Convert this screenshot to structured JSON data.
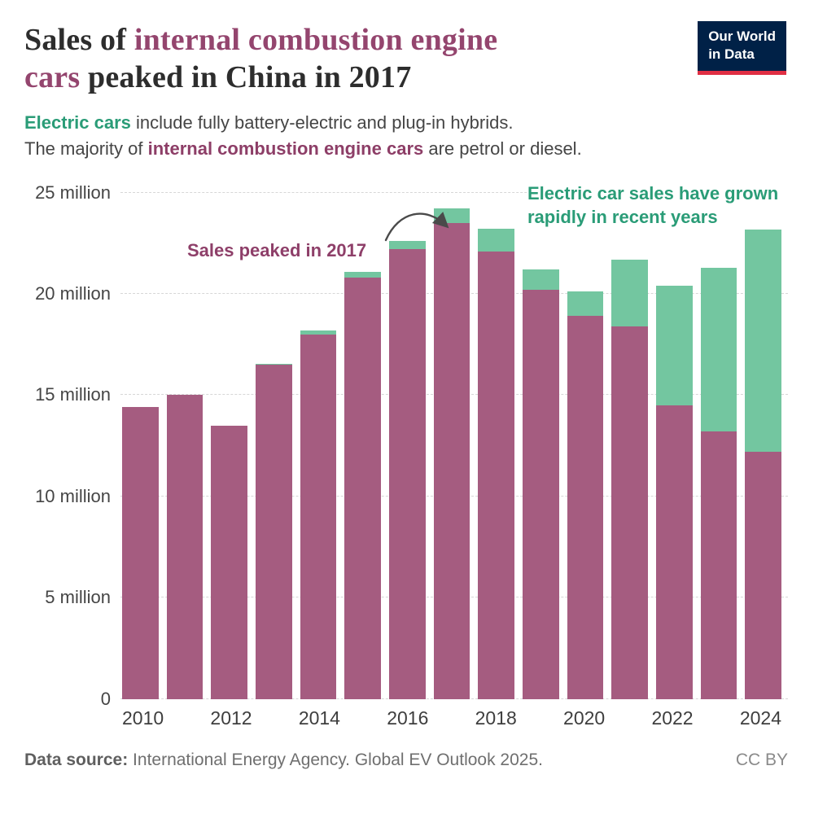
{
  "header": {
    "title": {
      "part1": "Sales of ",
      "highlight1": "internal combustion engine",
      "highlight2": "cars",
      "part2": " peaked in China in 2017"
    },
    "subtitle": {
      "line1_highlight": "Electric cars",
      "line1_rest": " include fully battery-electric and plug-in hybrids.",
      "line2_prefix": "The majority of ",
      "line2_highlight": "internal combustion engine cars",
      "line2_suffix": " are petrol or diesel."
    },
    "logo": {
      "line1": "Our World",
      "line2": "in Data"
    }
  },
  "annotations": {
    "peak_label": "Sales peaked in 2017",
    "ev_line1": "Electric car sales have grown",
    "ev_line2": "rapidly in recent years"
  },
  "chart_data": {
    "type": "bar",
    "stacked": true,
    "title": "Sales of internal combustion engine cars peaked in China in 2017",
    "unit": "million cars per year",
    "categories": [
      2010,
      2011,
      2012,
      2013,
      2014,
      2015,
      2016,
      2017,
      2018,
      2019,
      2020,
      2021,
      2022,
      2023,
      2024
    ],
    "series": [
      {
        "name": "Internal combustion engine cars",
        "color": "#a55c80",
        "values": [
          14.4,
          15.0,
          13.5,
          16.5,
          18.0,
          20.8,
          22.2,
          23.5,
          22.1,
          20.2,
          18.9,
          18.4,
          14.5,
          13.2,
          12.2
        ]
      },
      {
        "name": "Electric cars",
        "color": "#73c6a0",
        "values": [
          0,
          0,
          0,
          0.05,
          0.2,
          0.3,
          0.4,
          0.7,
          1.1,
          1.0,
          1.2,
          3.3,
          5.9,
          8.1,
          11.5
        ]
      }
    ],
    "ylim": [
      0,
      25
    ],
    "y_ticks": [
      {
        "value": 0,
        "label": "0"
      },
      {
        "value": 5,
        "label": "5 million"
      },
      {
        "value": 10,
        "label": "10 million"
      },
      {
        "value": 15,
        "label": "15 million"
      },
      {
        "value": 20,
        "label": "20 million"
      },
      {
        "value": 25,
        "label": "25 million"
      }
    ],
    "x_tick_years": [
      2010,
      2012,
      2014,
      2016,
      2018,
      2020,
      2022,
      2024
    ],
    "grid": "dashed-horizontal",
    "legend": "none"
  },
  "footer": {
    "source_label": "Data source:",
    "source_text": " International Energy Agency. Global EV Outlook 2025.",
    "license": "CC BY"
  }
}
